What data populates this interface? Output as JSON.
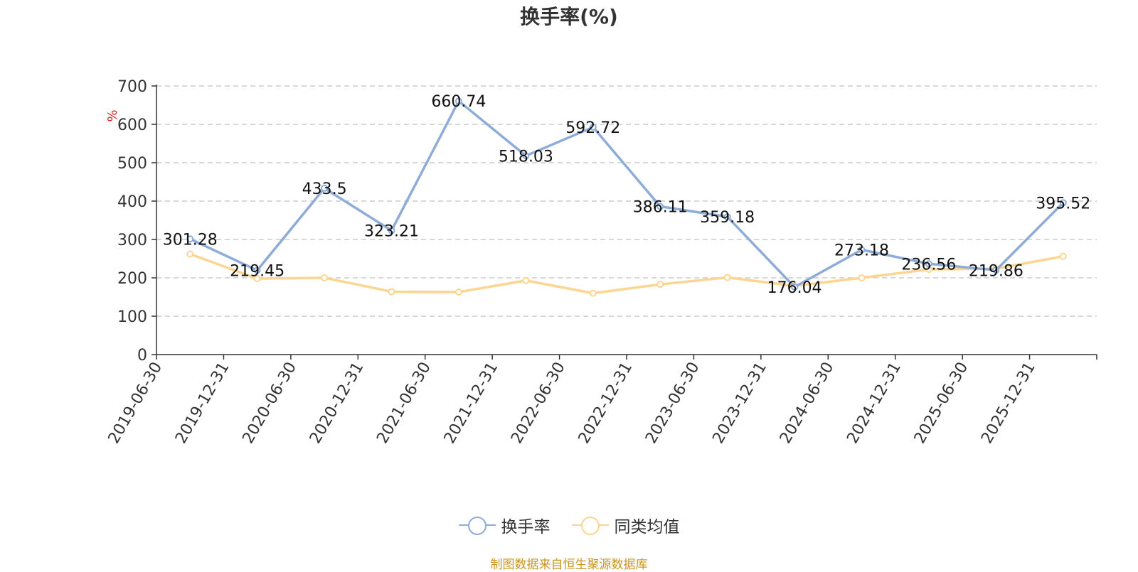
{
  "chart_data": {
    "type": "line",
    "title": "换手率(%)",
    "ylabel": "%",
    "ylim": [
      0,
      700
    ],
    "yticks": [
      0,
      100,
      200,
      300,
      400,
      500,
      600,
      700
    ],
    "categories": [
      "2019-06-30",
      "2019-12-31",
      "2020-06-30",
      "2020-12-31",
      "2021-06-30",
      "2021-12-31",
      "2022-06-30",
      "2022-12-31",
      "2023-06-30",
      "2023-12-31",
      "2024-06-30",
      "2024-12-31",
      "2025-06-30",
      "2025-12-31"
    ],
    "grid": true,
    "legend_position": "bottom",
    "series": [
      {
        "name": "换手率",
        "color": "#8eacd8",
        "values": [
          301.28,
          219.45,
          433.5,
          323.21,
          660.74,
          518.03,
          592.72,
          386.11,
          359.18,
          176.04,
          273.18,
          236.56,
          219.86,
          395.52
        ],
        "labels": [
          "301.28",
          "219.45",
          "433.5",
          "323.21",
          "660.74",
          "518.03",
          "592.72",
          "386.11",
          "359.18",
          "176.04",
          "273.18",
          "236.56",
          "219.86",
          "395.52"
        ]
      },
      {
        "name": "同类均值",
        "color": "#fdd592",
        "values": [
          262,
          198,
          200,
          164,
          163,
          193,
          160,
          183,
          201,
          179,
          200,
          222,
          224,
          256
        ]
      }
    ]
  },
  "source_note": "制图数据来自恒生聚源数据库",
  "colors": {
    "source_note": "#c8961e",
    "axis_unit": "#e02020"
  }
}
